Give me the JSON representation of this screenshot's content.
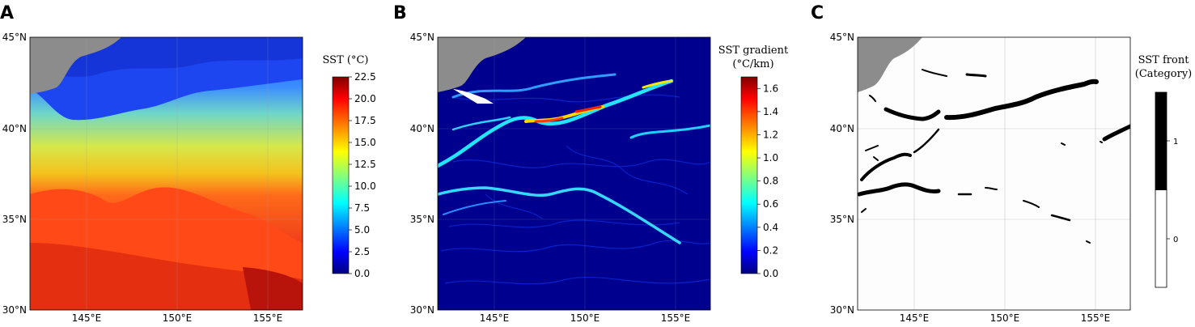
{
  "panels": [
    {
      "letter": "A",
      "colorbar": {
        "title_lines": [
          "SST (°C)"
        ],
        "ticks": [
          "0.0",
          "2.5",
          "5.0",
          "7.5",
          "10.0",
          "12.5",
          "15.0",
          "17.5",
          "20.0",
          "22.5"
        ],
        "range": [
          0,
          22.5
        ]
      }
    },
    {
      "letter": "B",
      "colorbar": {
        "title_lines": [
          "SST gradient",
          "(°C/km)"
        ],
        "ticks": [
          "0.0",
          "0.2",
          "0.4",
          "0.6",
          "0.8",
          "1.0",
          "1.2",
          "1.4",
          "1.6"
        ],
        "range": [
          0,
          1.7
        ]
      }
    },
    {
      "letter": "C",
      "colorbar": {
        "title_lines": [
          "SST front",
          "(Category)"
        ],
        "ticks": [
          "0",
          "1"
        ],
        "categories": [
          {
            "value": "0",
            "color": "#ffffff"
          },
          {
            "value": "1",
            "color": "#000000"
          }
        ]
      }
    }
  ],
  "lat_labels": [
    "45°N",
    "40°N",
    "35°N",
    "30°N"
  ],
  "lon_labels": [
    "145°E",
    "150°E",
    "155°E"
  ],
  "colormap": "jet",
  "land_color": "#8c8c8c"
}
